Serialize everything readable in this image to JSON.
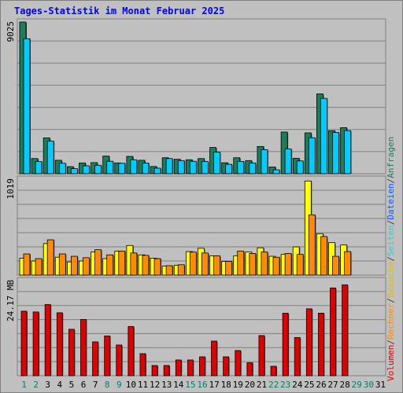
{
  "title": "Tages-Statistik im Monat Februar 2025",
  "colors": {
    "anfragen": "#1b7d5c",
    "dateien": "#00ccff",
    "seiten": "#33cccc",
    "besuche": "#ffff00",
    "rechner": "#ff8c00",
    "volumen": "#e00000",
    "weekday": "#000000",
    "weekend": "#00806a",
    "grid": "#808080",
    "panel": "#c0c0c0",
    "title": "#0000ff"
  },
  "legend": {
    "volumen": "Volumen",
    "rechner": "Rechner",
    "besuche": "Besuche",
    "seiten": "Seiten",
    "dateien": "Dateien",
    "anfragen": "Anfragen",
    "separator": "/"
  },
  "chart_data": {
    "type": "bar",
    "title": "Tages-Statistik im Monat Februar 2025",
    "categories": [
      "1",
      "2",
      "3",
      "4",
      "5",
      "6",
      "7",
      "8",
      "9",
      "10",
      "11",
      "12",
      "13",
      "14",
      "15",
      "16",
      "17",
      "18",
      "19",
      "20",
      "21",
      "22",
      "23",
      "24",
      "25",
      "26",
      "27",
      "28",
      "29",
      "30",
      "31"
    ],
    "weekend_days": [
      "1",
      "2",
      "8",
      "9",
      "15",
      "16",
      "22",
      "23",
      "29",
      "30"
    ],
    "panels": [
      {
        "max_label": "9025",
        "ylim": [
          0,
          9025
        ],
        "series": [
          {
            "name": "Anfragen",
            "color": "#1b7d5c",
            "values": [
              9025,
              900,
              2130,
              800,
              420,
              640,
              660,
              1050,
              640,
              1030,
              800,
              430,
              950,
              860,
              830,
              900,
              1560,
              650,
              950,
              780,
              1620,
              400,
              2480,
              920,
              2430,
              4750,
              2560,
              2740,
              null,
              null,
              null
            ]
          },
          {
            "name": "Dateien",
            "color": "#00ccff",
            "values": [
              8030,
              720,
              1940,
              620,
              300,
              470,
              500,
              740,
              620,
              830,
              630,
              330,
              900,
              780,
              740,
              730,
              1280,
              560,
              730,
              640,
              1430,
              230,
              1470,
              760,
              2140,
              4480,
              2460,
              2560,
              null,
              null,
              null
            ]
          }
        ]
      },
      {
        "max_label": "1019",
        "ylim": [
          0,
          1019
        ],
        "series": [
          {
            "name": "Besuche",
            "color": "#ffff00",
            "values": [
              180,
              150,
              335,
              190,
              140,
              150,
              245,
              175,
              255,
              315,
              215,
              180,
              95,
              105,
              250,
              285,
              205,
              145,
              205,
              245,
              290,
              200,
              220,
              300,
              1000,
              440,
              345,
              320,
              null,
              null,
              null
            ]
          },
          {
            "name": "Rechner",
            "color": "#ff8c00",
            "values": [
              225,
              175,
              375,
              225,
              200,
              185,
              270,
              215,
              255,
              235,
              210,
              175,
              100,
              110,
              245,
              235,
              205,
              145,
              255,
              230,
              245,
              190,
              230,
              220,
              640,
              410,
              200,
              250,
              null,
              null,
              null
            ]
          }
        ]
      },
      {
        "max_label": "24.17 MB",
        "ylim": [
          0,
          24.17
        ],
        "series": [
          {
            "name": "Volumen",
            "color": "#e00000",
            "values": [
              16.4,
              16.2,
              18.1,
              16.0,
              11.8,
              14.3,
              8.6,
              10.1,
              7.8,
              12.5,
              5.6,
              2.6,
              2.6,
              4.0,
              4.0,
              4.8,
              8.8,
              4.8,
              6.4,
              3.3,
              10.2,
              2.4,
              15.9,
              9.7,
              17.0,
              15.9,
              22.3,
              23.1,
              null,
              null,
              null
            ]
          }
        ]
      }
    ]
  }
}
